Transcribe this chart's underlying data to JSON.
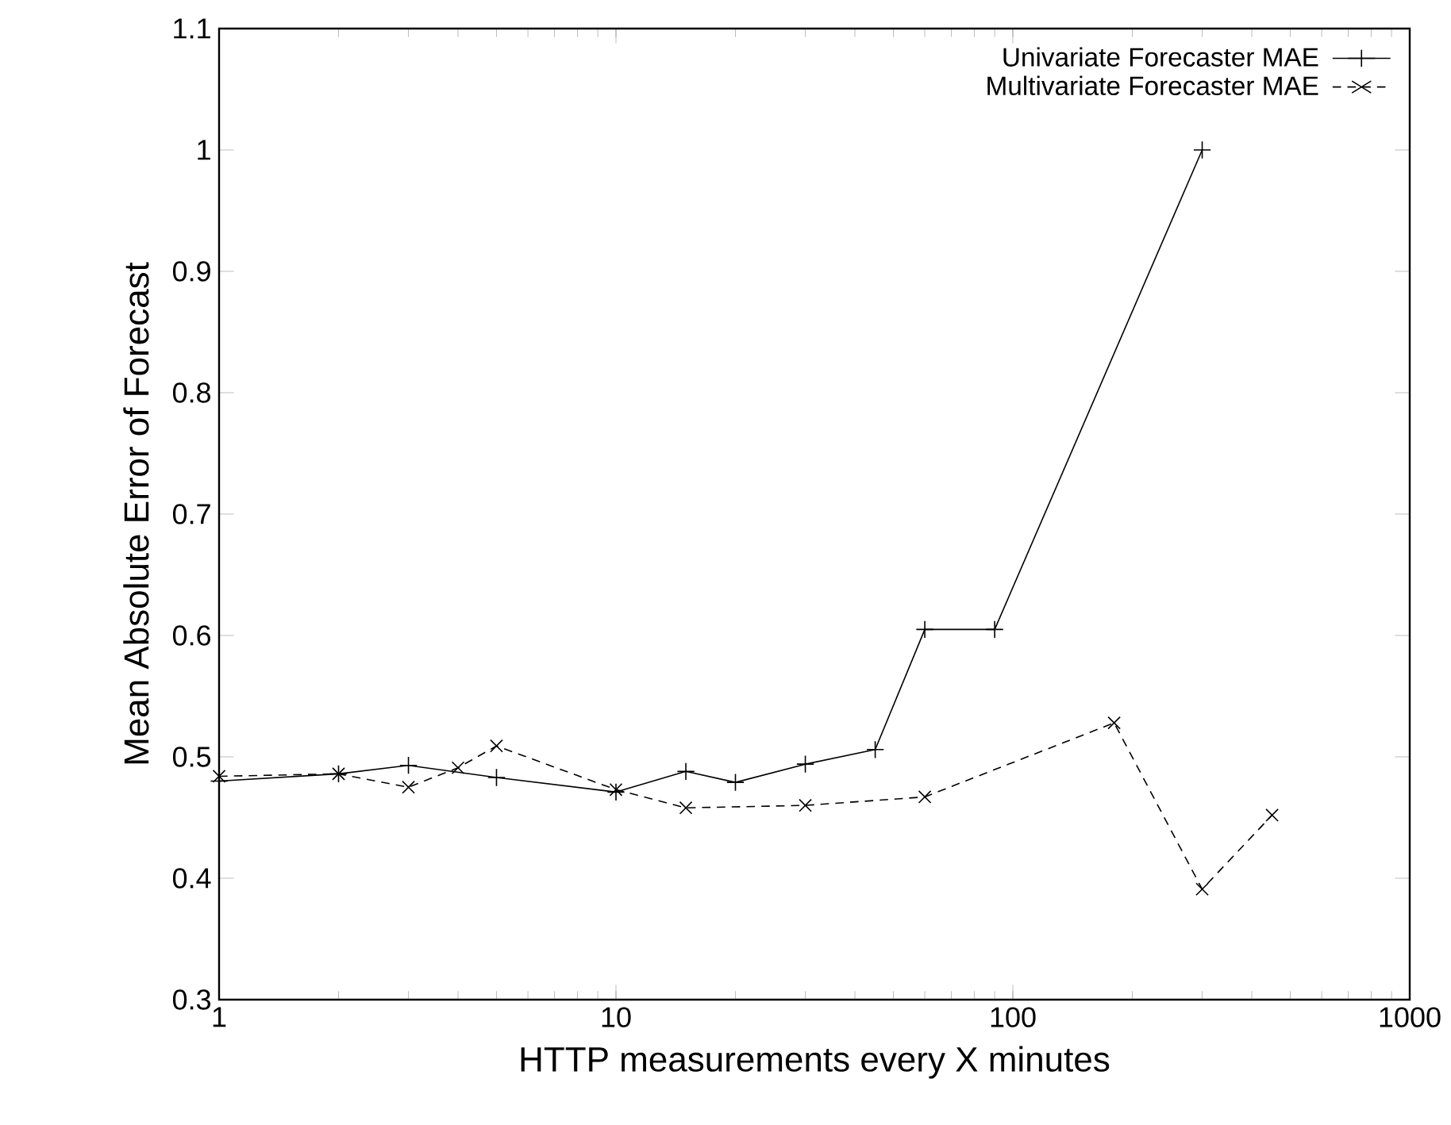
{
  "chart_data": {
    "type": "line",
    "xlabel": "HTTP measurements every X minutes",
    "ylabel": "Mean Absolute Error of Forecast",
    "log": "x",
    "xlim": [
      1,
      1000
    ],
    "ylim": [
      0.3,
      1.1
    ],
    "xticks": [
      1,
      10,
      100,
      1000
    ],
    "yticks": [
      0.3,
      0.4,
      0.5,
      0.6,
      0.7,
      0.8,
      0.9,
      1,
      1.1
    ],
    "grid": false,
    "legend": "top right",
    "series": [
      {
        "name": "Univariate Forecaster MAE",
        "color": "#000000",
        "marker": "plus",
        "line_style": "solid",
        "x": [
          1,
          2,
          3,
          5,
          10,
          15,
          20,
          30,
          45,
          60,
          90,
          300
        ],
        "values": [
          0.48,
          0.486,
          0.493,
          0.483,
          0.471,
          0.488,
          0.479,
          0.494,
          0.506,
          0.605,
          0.605,
          1.0
        ]
      },
      {
        "name": "Multivariate Forecaster MAE",
        "color": "#000000",
        "marker": "cross",
        "line_style": "dashed",
        "x": [
          1,
          2,
          3,
          4,
          5,
          10,
          15,
          30,
          60,
          180,
          300,
          450
        ],
        "values": [
          0.484,
          0.486,
          0.475,
          0.491,
          0.509,
          0.473,
          0.458,
          0.46,
          0.467,
          0.528,
          0.391,
          0.452
        ]
      }
    ]
  }
}
